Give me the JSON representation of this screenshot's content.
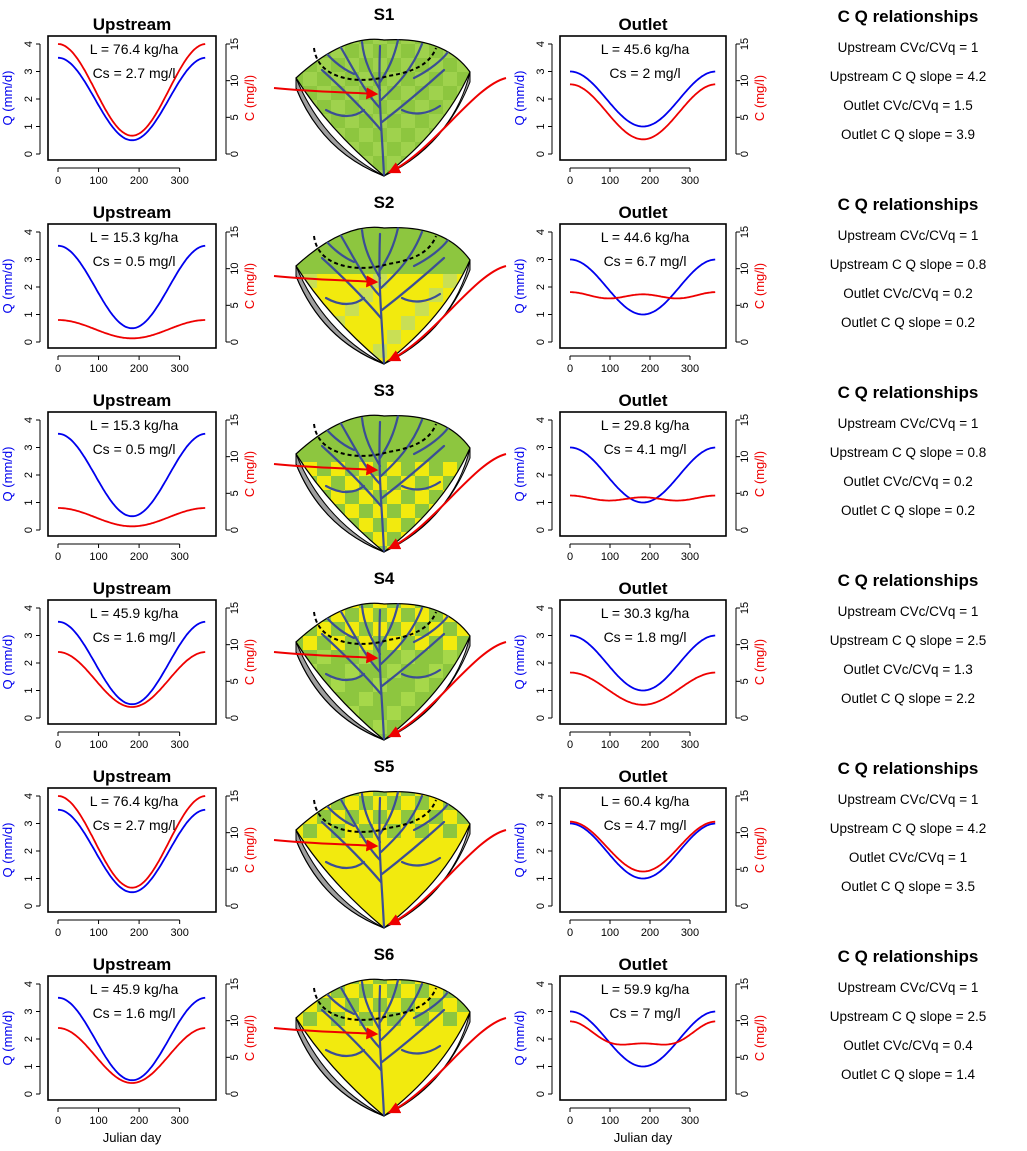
{
  "colors": {
    "discharge": "#0000ee",
    "concentration": "#ee0000",
    "green": "#8dc63f",
    "yellow": "#f2ea0e",
    "stream": "#3b4e95"
  },
  "labels": {
    "upstream_title": "Upstream",
    "outlet_title": "Outlet",
    "relationships_title": "C  Q relationships",
    "q_axis": "Q (mm/d)",
    "c_axis": "C (mg/l)",
    "x_axis": "Julian day"
  },
  "axes": {
    "x_ticks": [
      0,
      100,
      200,
      300
    ],
    "q_ticks": [
      0,
      1,
      2,
      3,
      4
    ],
    "c_ticks": [
      0,
      5,
      10,
      15
    ],
    "xlim": [
      0,
      365
    ],
    "qlim": [
      0,
      4
    ],
    "clim": [
      0,
      15
    ]
  },
  "chart_data": [
    {
      "scenario": "S1",
      "type": "line",
      "source_pattern": "mostly-green",
      "upstream": {
        "load": "L = 76.4 kg/ha",
        "cs": "Cs = 2.7 mg/l",
        "q_min": 0.5,
        "q_max": 3.5,
        "c_min": 2.5,
        "c_max": 15.0,
        "c_mode": "cos"
      },
      "outlet": {
        "load": "L = 45.6 kg/ha",
        "cs": "Cs = 2 mg/l",
        "q_min": 1.0,
        "q_max": 3.0,
        "c_min": 2.0,
        "c_max": 9.5,
        "c_mode": "cos"
      },
      "relationships": [
        "Upstream CVc/CVq = 1",
        "Upstream C  Q slope = 4.2",
        "Outlet CVc/CVq = 1.5",
        "Outlet C  Q slope = 3.9"
      ]
    },
    {
      "scenario": "S2",
      "type": "line",
      "source_pattern": "green-top-yellow-bottom",
      "upstream": {
        "load": "L = 15.3 kg/ha",
        "cs": "Cs = 0.5 mg/l",
        "q_min": 0.5,
        "q_max": 3.5,
        "c_min": 0.5,
        "c_max": 3.0,
        "c_mode": "cos"
      },
      "outlet": {
        "load": "L = 44.6 kg/ha",
        "cs": "Cs = 6.7 mg/l",
        "q_min": 1.0,
        "q_max": 3.0,
        "c_min": 5.8,
        "c_max": 6.8,
        "c_mode": "wavy",
        "c_mean": 6.3,
        "c_peak": 6.8
      },
      "relationships": [
        "Upstream CVc/CVq = 1",
        "Upstream C  Q slope = 0.8",
        "Outlet CVc/CVq = 0.2",
        "Outlet C  Q slope =   0.2"
      ]
    },
    {
      "scenario": "S3",
      "type": "line",
      "source_pattern": "green-top-checker-bottom",
      "upstream": {
        "load": "L = 15.3 kg/ha",
        "cs": "Cs = 0.5 mg/l",
        "q_min": 0.5,
        "q_max": 3.5,
        "c_min": 0.5,
        "c_max": 3.0,
        "c_mode": "cos"
      },
      "outlet": {
        "load": "L = 29.8 kg/ha",
        "cs": "Cs = 4.1 mg/l",
        "q_min": 1.0,
        "q_max": 3.0,
        "c_min": 3.8,
        "c_max": 4.6,
        "c_mode": "wavy",
        "c_mean": 4.3,
        "c_peak": 4.5
      },
      "relationships": [
        "Upstream CVc/CVq = 1",
        "Upstream C  Q slope = 0.8",
        "Outlet CVc/CVq = 0.2",
        "Outlet C  Q slope = 0.2"
      ]
    },
    {
      "scenario": "S4",
      "type": "line",
      "source_pattern": "green-checker-mix",
      "upstream": {
        "load": "L = 45.9 kg/ha",
        "cs": "Cs = 1.6 mg/l",
        "q_min": 0.5,
        "q_max": 3.5,
        "c_min": 1.5,
        "c_max": 9.0,
        "c_mode": "cos"
      },
      "outlet": {
        "load": "L = 30.3 kg/ha",
        "cs": "Cs = 1.8 mg/l",
        "q_min": 1.0,
        "q_max": 3.0,
        "c_min": 1.8,
        "c_max": 6.2,
        "c_mode": "cos"
      },
      "relationships": [
        "Upstream CVc/CVq = 1",
        "Upstream C  Q slope = 2.5",
        "Outlet CVc/CVq = 1.3",
        "Outlet C  Q slope = 2.2"
      ]
    },
    {
      "scenario": "S5",
      "type": "line",
      "source_pattern": "checker-top-yellow-bottom",
      "upstream": {
        "load": "L = 76.4 kg/ha",
        "cs": "Cs = 2.7 mg/l",
        "q_min": 0.5,
        "q_max": 3.5,
        "c_min": 2.5,
        "c_max": 15.0,
        "c_mode": "cos"
      },
      "outlet": {
        "load": "L = 60.4 kg/ha",
        "cs": "Cs = 4.7 mg/l",
        "q_min": 1.0,
        "q_max": 3.0,
        "c_min": 4.7,
        "c_max": 11.5,
        "c_mode": "cos"
      },
      "relationships": [
        "Upstream CVc/CVq = 1",
        "Upstream C  Q slope = 4.2",
        "Outlet CVc/CVq = 1",
        "Outlet C  Q slope = 3.5"
      ]
    },
    {
      "scenario": "S6",
      "type": "line",
      "source_pattern": "checker-top-yellow-bottom",
      "upstream": {
        "load": "L = 45.9 kg/ha",
        "cs": "Cs = 1.6 mg/l",
        "q_min": 0.5,
        "q_max": 3.5,
        "c_min": 1.5,
        "c_max": 9.0,
        "c_mode": "cos"
      },
      "outlet": {
        "load": "L = 59.9 kg/ha",
        "cs": "Cs = 7 mg/l",
        "q_min": 1.0,
        "q_max": 3.0,
        "c_min": 6.6,
        "c_max": 9.8,
        "c_mode": "wavy_outlet6",
        "c_mean": 7.0,
        "c_peak": 7.0
      },
      "relationships": [
        "Upstream CVc/CVq = 1",
        "Upstream C  Q slope = 2.5",
        "Outlet CVc/CVq = 0.4",
        "Outlet C  Q slope = 1.4"
      ]
    }
  ]
}
